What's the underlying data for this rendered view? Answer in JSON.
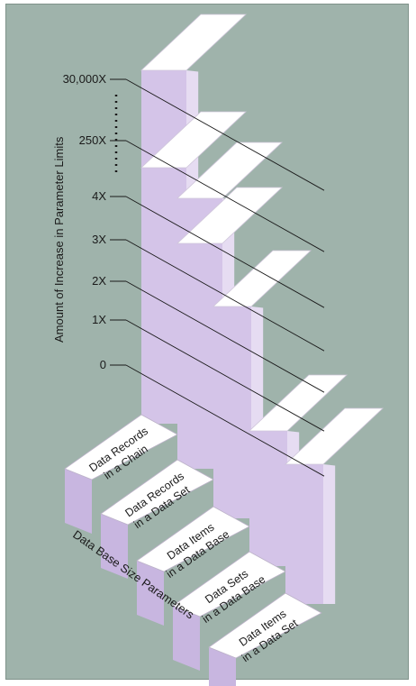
{
  "chart_data": {
    "type": "bar",
    "style": "3d-isometric-columns-with-axis-break",
    "ylabel": "Amount of Increase in Parameter Limits",
    "xlabel": "Data Base Size Parameters",
    "y_ticks": [
      "0",
      "1X",
      "2X",
      "3X",
      "4X",
      "250X",
      "30,000X"
    ],
    "categories": [
      "Data Records in a Chain",
      "Data Records in a Data Set",
      "Data Items in a Data Base",
      "Data Sets in a Data Base",
      "Data Items in a Data Set"
    ],
    "category_lines": [
      [
        "Data Records",
        "in a Chain"
      ],
      [
        "Data Records",
        "in a Data Set"
      ],
      [
        "Data Items",
        "in a Data Base"
      ],
      [
        "Data Sets",
        "in a Data Base"
      ],
      [
        "Data Items",
        "in a Data Set"
      ]
    ],
    "values": [
      "30,000X",
      "250X",
      "4X",
      "1X",
      "1X"
    ],
    "colors": {
      "background": "#9fb3ab",
      "bar_front": "#d4c4e8",
      "bar_side": "#e6dcf2",
      "bar_top": "#ffffff",
      "base_front": "#c8b6e0",
      "label_face": "#ffffff",
      "lines": "#1a1a1a"
    }
  }
}
